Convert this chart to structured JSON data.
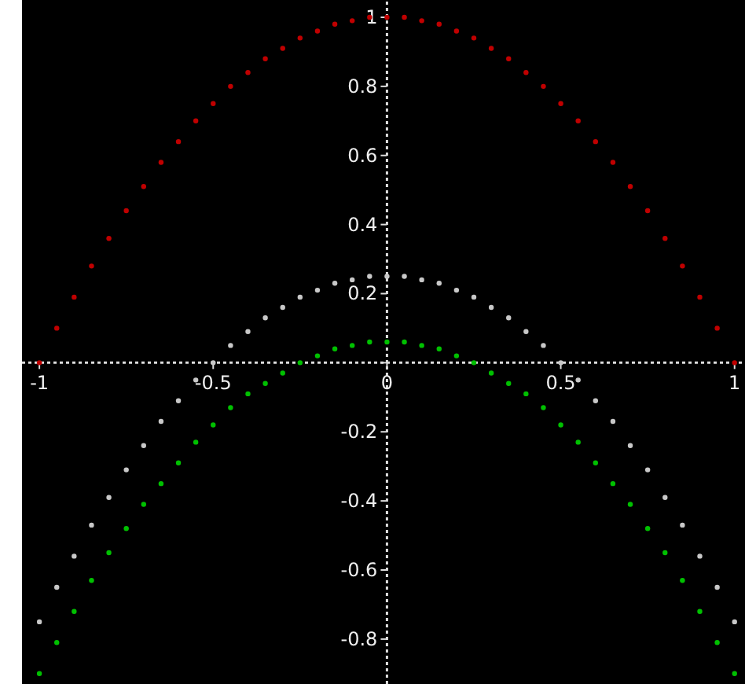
{
  "chart_data": {
    "type": "scatter",
    "marker": "circle",
    "x": [
      -1,
      -0.95,
      -0.9,
      -0.85,
      -0.8,
      -0.75,
      -0.7,
      -0.65,
      -0.6,
      -0.55,
      -0.5,
      -0.45,
      -0.4,
      -0.35,
      -0.3,
      -0.25,
      -0.2,
      -0.15,
      -0.1,
      -0.05,
      0,
      0.05,
      0.1,
      0.15,
      0.2,
      0.25,
      0.3,
      0.35,
      0.4,
      0.45,
      0.5,
      0.55,
      0.6,
      0.65,
      0.7,
      0.75,
      0.8,
      0.85,
      0.9,
      0.95,
      1
    ],
    "xlim": [
      -1.05,
      1.03
    ],
    "ylim": [
      -0.93,
      1.05
    ],
    "xticks": [
      -1,
      -0.5,
      0,
      0.5,
      1
    ],
    "yticks": [
      -0.8,
      -0.6,
      -0.4,
      -0.2,
      {
        "value": 0,
        "label": null
      },
      0.2,
      0.4,
      0.6,
      0.8,
      1
    ],
    "series": [
      {
        "color": "#c00000",
        "values": [
          0,
          0.1,
          0.19,
          0.28,
          0.36,
          0.44,
          0.51,
          0.58,
          0.64,
          0.7,
          0.75,
          0.8,
          0.84,
          0.88,
          0.91,
          0.94,
          0.96,
          0.98,
          0.99,
          1,
          1,
          1,
          0.99,
          0.98,
          0.96,
          0.94,
          0.91,
          0.88,
          0.84,
          0.8,
          0.75,
          0.7,
          0.64,
          0.58,
          0.51,
          0.44,
          0.36,
          0.28,
          0.19,
          0.1,
          0
        ]
      },
      {
        "color": "#c8c8c8",
        "values": [
          -0.75,
          -0.65,
          -0.56,
          -0.47,
          -0.39,
          -0.31,
          -0.24,
          -0.17,
          -0.11,
          -0.05,
          0,
          0.05,
          0.09,
          0.13,
          0.16,
          0.19,
          0.21,
          0.23,
          0.24,
          0.25,
          0.25,
          0.25,
          0.24,
          0.23,
          0.21,
          0.19,
          0.16,
          0.13,
          0.09,
          0.05,
          0,
          -0.05,
          -0.11,
          -0.17,
          -0.24,
          -0.31,
          -0.39,
          -0.47,
          -0.56,
          -0.65,
          -0.75
        ]
      },
      {
        "color": "#00c000",
        "values": [
          -0.9,
          -0.81,
          -0.72,
          -0.63,
          -0.55,
          -0.48,
          -0.41,
          -0.35,
          -0.29,
          -0.23,
          -0.18,
          -0.13,
          -0.09,
          -0.06,
          -0.03,
          0,
          0.02,
          0.04,
          0.05,
          0.06,
          0.06,
          0.06,
          0.05,
          0.04,
          0.02,
          0,
          -0.03,
          -0.06,
          -0.09,
          -0.13,
          -0.18,
          -0.23,
          -0.29,
          -0.35,
          -0.41,
          -0.48,
          -0.55,
          -0.63,
          -0.72,
          -0.81,
          -0.9
        ]
      }
    ]
  }
}
